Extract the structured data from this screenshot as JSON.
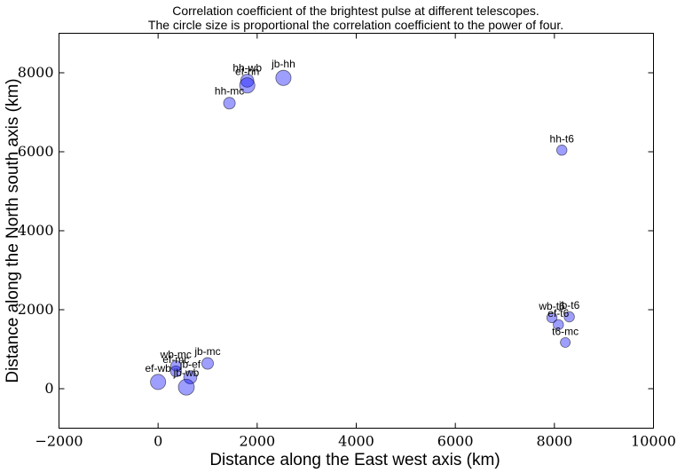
{
  "chart_data": {
    "type": "scatter",
    "title": "Correlation coefficient of the brightest pulse at different telescopes.",
    "subtitle": "The circle size is proportional the correlation coefficient to the power of four.",
    "xlabel": "Distance along the East west axis (km)",
    "ylabel": "Distance along the North south axis (km)",
    "xlim": [
      -2000,
      10000
    ],
    "ylim": [
      -1000,
      9000
    ],
    "xticks": [
      -2000,
      0,
      2000,
      4000,
      6000,
      8000,
      10000
    ],
    "yticks": [
      0,
      2000,
      4000,
      6000,
      8000
    ],
    "xtick_labels": [
      "−2000",
      "0",
      "2000",
      "4000",
      "6000",
      "8000",
      "10000"
    ],
    "ytick_labels": [
      "0",
      "2000",
      "4000",
      "6000",
      "8000"
    ],
    "grid": false,
    "point_color": "#0000ff",
    "points": [
      {
        "label": "hh-wb",
        "x": 1800,
        "y": 7800,
        "size": 0.55
      },
      {
        "label": "ef-hh",
        "x": 1800,
        "y": 7680,
        "size": 0.7
      },
      {
        "label": "jb-hh",
        "x": 2530,
        "y": 7870,
        "size": 0.7
      },
      {
        "label": "hh-mc",
        "x": 1440,
        "y": 7230,
        "size": 0.45
      },
      {
        "label": "hh-t6",
        "x": 8150,
        "y": 6040,
        "size": 0.35
      },
      {
        "label": "wb-t6",
        "x": 7950,
        "y": 1800,
        "size": 0.35
      },
      {
        "label": "jb-t6",
        "x": 8300,
        "y": 1820,
        "size": 0.35
      },
      {
        "label": "ef-t6",
        "x": 8080,
        "y": 1620,
        "size": 0.35
      },
      {
        "label": "t6-mc",
        "x": 8220,
        "y": 1170,
        "size": 0.32
      },
      {
        "label": "jb-mc",
        "x": 1000,
        "y": 640,
        "size": 0.45
      },
      {
        "label": "wb-mc",
        "x": 360,
        "y": 580,
        "size": 0.35
      },
      {
        "label": "ef-mc",
        "x": 360,
        "y": 440,
        "size": 0.4
      },
      {
        "label": "jb-ef",
        "x": 650,
        "y": 290,
        "size": 0.55
      },
      {
        "label": "ef-wb",
        "x": 0,
        "y": 170,
        "size": 0.7
      },
      {
        "label": "jb-wb",
        "x": 570,
        "y": 40,
        "size": 0.75
      }
    ]
  }
}
